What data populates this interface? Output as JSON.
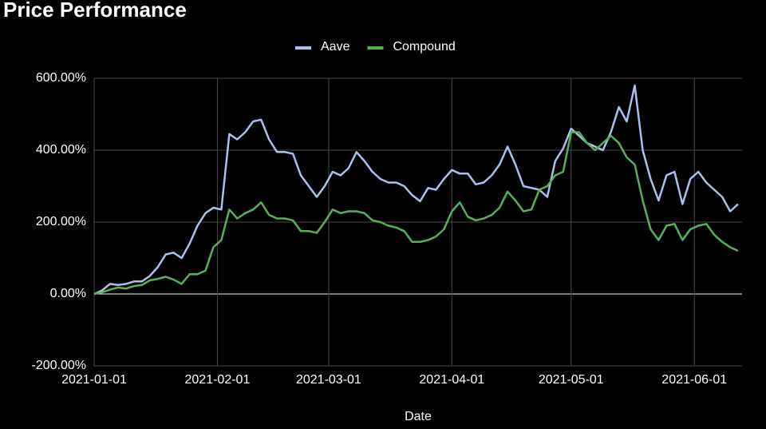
{
  "chart_data": {
    "type": "line",
    "title": "Price Performance",
    "x_label": "Date",
    "x": [
      "2021-01-01",
      "2021-01-03",
      "2021-01-05",
      "2021-01-07",
      "2021-01-09",
      "2021-01-11",
      "2021-01-13",
      "2021-01-15",
      "2021-01-17",
      "2021-01-19",
      "2021-01-21",
      "2021-01-23",
      "2021-01-25",
      "2021-01-27",
      "2021-01-29",
      "2021-01-31",
      "2021-02-02",
      "2021-02-04",
      "2021-02-06",
      "2021-02-08",
      "2021-02-10",
      "2021-02-12",
      "2021-02-14",
      "2021-02-16",
      "2021-02-18",
      "2021-02-20",
      "2021-02-22",
      "2021-02-24",
      "2021-02-26",
      "2021-02-28",
      "2021-03-02",
      "2021-03-04",
      "2021-03-06",
      "2021-03-08",
      "2021-03-10",
      "2021-03-12",
      "2021-03-14",
      "2021-03-16",
      "2021-03-18",
      "2021-03-20",
      "2021-03-22",
      "2021-03-24",
      "2021-03-26",
      "2021-03-28",
      "2021-03-30",
      "2021-04-01",
      "2021-04-03",
      "2021-04-05",
      "2021-04-07",
      "2021-04-09",
      "2021-04-11",
      "2021-04-13",
      "2021-04-15",
      "2021-04-17",
      "2021-04-19",
      "2021-04-21",
      "2021-04-23",
      "2021-04-25",
      "2021-04-27",
      "2021-04-29",
      "2021-05-01",
      "2021-05-03",
      "2021-05-05",
      "2021-05-07",
      "2021-05-09",
      "2021-05-11",
      "2021-05-13",
      "2021-05-15",
      "2021-05-17",
      "2021-05-19",
      "2021-05-21",
      "2021-05-23",
      "2021-05-25",
      "2021-05-27",
      "2021-05-29",
      "2021-05-31",
      "2021-06-02",
      "2021-06-04",
      "2021-06-06",
      "2021-06-08",
      "2021-06-10",
      "2021-06-12"
    ],
    "series": [
      {
        "name": "Aave",
        "color": "#a9c1f0",
        "values": [
          0,
          10,
          28,
          25,
          28,
          35,
          35,
          50,
          75,
          110,
          115,
          100,
          140,
          190,
          225,
          240,
          235,
          445,
          430,
          450,
          480,
          485,
          430,
          395,
          395,
          390,
          330,
          300,
          270,
          300,
          340,
          330,
          350,
          395,
          370,
          340,
          320,
          310,
          310,
          300,
          275,
          258,
          295,
          290,
          320,
          345,
          335,
          335,
          305,
          310,
          330,
          360,
          410,
          360,
          300,
          295,
          290,
          270,
          370,
          405,
          460,
          440,
          420,
          410,
          400,
          450,
          520,
          480,
          580,
          400,
          320,
          260,
          330,
          340,
          250,
          320,
          340,
          310,
          290,
          270,
          230,
          250
        ]
      },
      {
        "name": "Compound",
        "color": "#53b35a",
        "values": [
          0,
          5,
          12,
          18,
          15,
          22,
          25,
          38,
          42,
          48,
          40,
          28,
          55,
          55,
          65,
          130,
          150,
          235,
          210,
          225,
          235,
          255,
          220,
          210,
          210,
          205,
          175,
          175,
          170,
          200,
          235,
          225,
          230,
          230,
          225,
          205,
          200,
          190,
          185,
          175,
          145,
          145,
          150,
          160,
          180,
          230,
          255,
          215,
          205,
          210,
          220,
          240,
          285,
          260,
          230,
          235,
          290,
          300,
          330,
          340,
          450,
          450,
          420,
          400,
          420,
          440,
          420,
          380,
          360,
          260,
          180,
          150,
          190,
          195,
          150,
          180,
          190,
          195,
          165,
          145,
          130,
          120
        ]
      }
    ],
    "xlim": [
      "2021-01-01",
      "2021-06-13"
    ],
    "xticks": [
      "2021-01-01",
      "2021-02-01",
      "2021-03-01",
      "2021-04-01",
      "2021-05-01",
      "2021-06-01"
    ],
    "ylim": [
      -200,
      600
    ],
    "yticks": [
      {
        "value": -200,
        "label": "-200.00%"
      },
      {
        "value": 0,
        "label": "0.00%"
      },
      {
        "value": 200,
        "label": "200.00%"
      },
      {
        "value": 400,
        "label": "400.00%"
      },
      {
        "value": 600,
        "label": "600.00%"
      }
    ],
    "grid": true,
    "legend": "top"
  }
}
